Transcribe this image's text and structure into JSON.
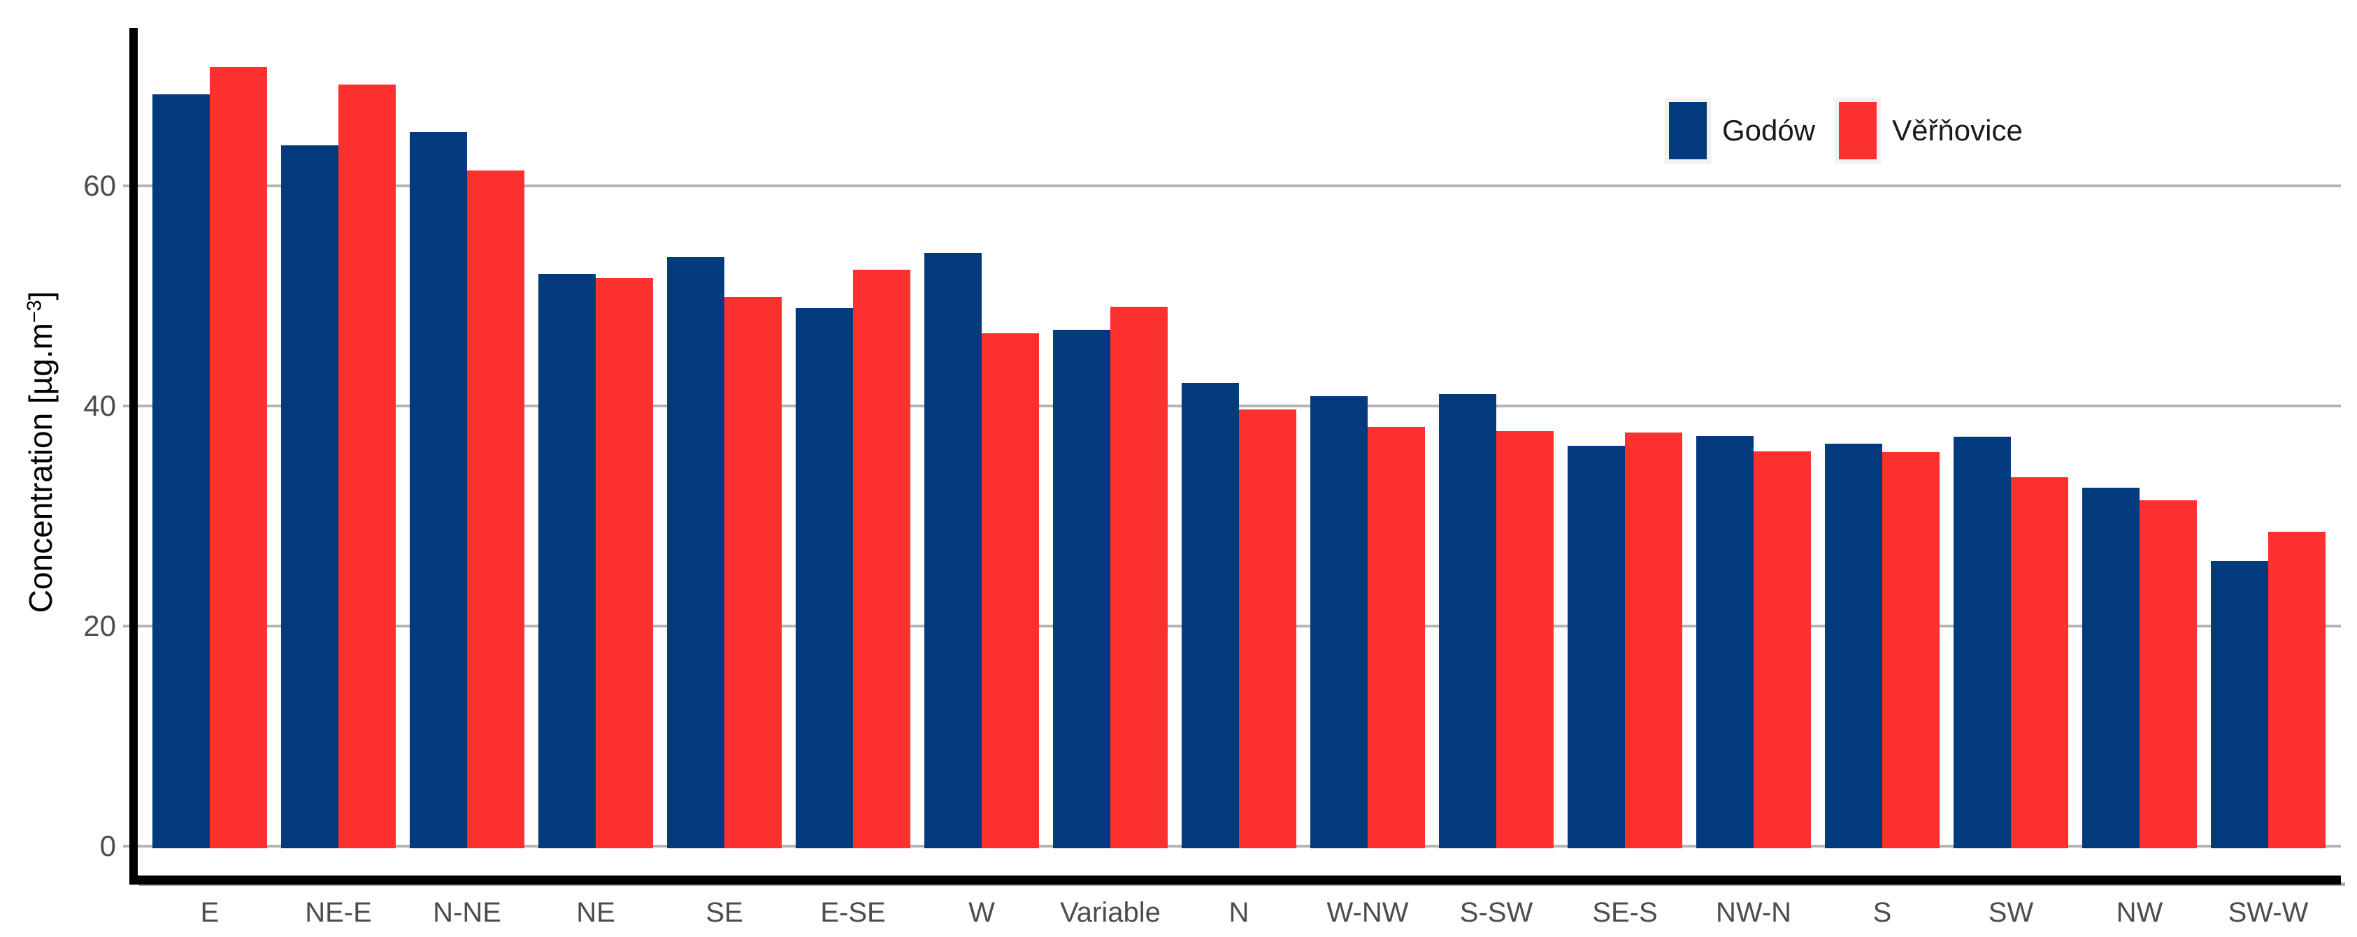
{
  "chart_data": {
    "type": "bar",
    "title": "",
    "categories": [
      "E",
      "NE-E",
      "N-NE",
      "NE",
      "SE",
      "E-SE",
      "W",
      "Variable",
      "N",
      "W-NW",
      "S-SW",
      "SE-S",
      "NW-N",
      "S",
      "SW",
      "NW",
      "SW-W"
    ],
    "series": [
      {
        "name": "Godów",
        "color": "#033a7d",
        "values": [
          68.3,
          63.7,
          64.9,
          52.0,
          53.5,
          48.9,
          53.9,
          46.9,
          42.1,
          40.9,
          41.1,
          36.4,
          37.3,
          36.6,
          37.2,
          32.6,
          25.9
        ]
      },
      {
        "name": "Věřňovice",
        "color": "#fc302f",
        "values": [
          70.8,
          69.2,
          61.4,
          51.6,
          49.9,
          52.4,
          46.6,
          49.0,
          39.7,
          38.1,
          37.7,
          37.6,
          35.9,
          35.8,
          33.5,
          31.4,
          28.6
        ]
      }
    ],
    "xlabel": "",
    "ylabel": "Concentration [µg.m⁻³]",
    "ylabel_parts": {
      "prefix": "Concentration [µg.m",
      "sup": "−3",
      "suffix": "]"
    },
    "y_ticks": [
      0,
      20,
      40,
      60
    ],
    "ylim": [
      0,
      74.3
    ],
    "grid": "horizontal-only",
    "legend_position": "inside-top-right",
    "gridline_color": "#b5b5b5",
    "axis_color": "#000000",
    "tick_label_color": "#4d4d4d"
  },
  "legend": {
    "items": [
      {
        "label": "Godów",
        "color": "#033a7d"
      },
      {
        "label": "Věřňovice",
        "color": "#fc302f"
      }
    ]
  }
}
